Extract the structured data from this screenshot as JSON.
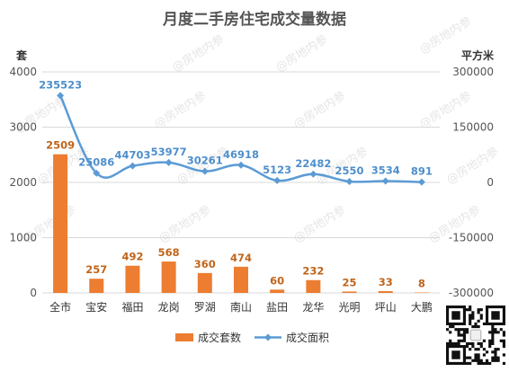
{
  "watermark": "@房地内参",
  "chart_data": {
    "type": "bar",
    "title": "月度二手房住宅成交量数据",
    "categories": [
      "全市",
      "宝安",
      "福田",
      "龙岗",
      "罗湖",
      "南山",
      "盐田",
      "龙华",
      "光明",
      "坪山",
      "大鹏"
    ],
    "series": [
      {
        "name": "成交套数",
        "type": "bar",
        "axis": "left",
        "color": "#ed7d31",
        "values": [
          2509,
          257,
          492,
          568,
          360,
          474,
          60,
          232,
          25,
          33,
          8
        ]
      },
      {
        "name": "成交面积",
        "type": "line",
        "axis": "right",
        "color": "#5b9bd5",
        "values": [
          235523,
          25086,
          44703,
          53977,
          30261,
          46918,
          5123,
          22482,
          2550,
          3534,
          891
        ]
      }
    ],
    "y_left": {
      "label": "套",
      "range": [
        0,
        4000
      ],
      "ticks": [
        "0",
        "1000",
        "2000",
        "3000",
        "4000"
      ]
    },
    "y_right": {
      "label": "平方米",
      "range": [
        -300000,
        300000
      ],
      "ticks": [
        "-300000",
        "-150000",
        "0",
        "150000",
        "300000"
      ]
    },
    "legend": "bottom",
    "grid": true
  }
}
